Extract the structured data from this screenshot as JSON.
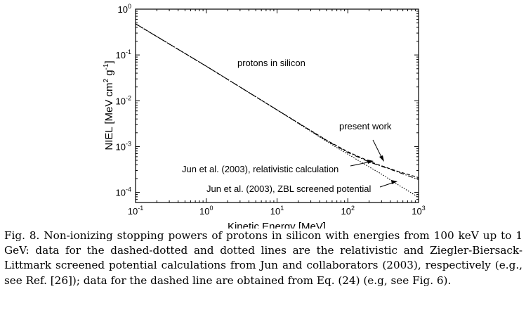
{
  "chart_data": {
    "type": "line",
    "title": "",
    "xlabel": "Kinetic Energy [MeV]",
    "ylabel": "NIEL [MeV cm",
    "ylabel_sup1": "2",
    "ylabel_mid": " g",
    "ylabel_sup2": "-1",
    "ylabel_end": "]",
    "x_scale": "log",
    "y_scale": "log",
    "xlim": [
      0.1,
      1000
    ],
    "ylim": [
      6e-05,
      1
    ],
    "x_ticks": [
      {
        "value": 0.1,
        "base": "10",
        "exp": "-1"
      },
      {
        "value": 1,
        "base": "10",
        "exp": "0"
      },
      {
        "value": 10,
        "base": "10",
        "exp": "1"
      },
      {
        "value": 100,
        "base": "10",
        "exp": "2"
      },
      {
        "value": 1000,
        "base": "10",
        "exp": "3"
      }
    ],
    "y_ticks": [
      {
        "value": 0.0001,
        "base": "10",
        "exp": "-4"
      },
      {
        "value": 0.001,
        "base": "10",
        "exp": "-3"
      },
      {
        "value": 0.01,
        "base": "10",
        "exp": "-2"
      },
      {
        "value": 0.1,
        "base": "10",
        "exp": "-1"
      },
      {
        "value": 1,
        "base": "10",
        "exp": "0"
      }
    ],
    "grid": false,
    "legend": "none",
    "series": [
      {
        "style": "dashed",
        "x": [
          0.1,
          1,
          10,
          50,
          100,
          200,
          300,
          500,
          1000
        ],
        "y": [
          0.48,
          0.0567,
          0.0063,
          0.00138,
          0.00077,
          0.00048,
          0.00038,
          0.00029,
          0.00021
        ]
      },
      {
        "style": "dash-dot",
        "x": [
          0.1,
          1,
          10,
          50,
          100,
          200,
          300,
          500,
          1000
        ],
        "y": [
          0.48,
          0.0567,
          0.0063,
          0.00135,
          0.00074,
          0.00046,
          0.00037,
          0.00028,
          0.00019
        ]
      },
      {
        "style": "dotted",
        "x": [
          0.1,
          1,
          10,
          50,
          100,
          200,
          300,
          500,
          1000
        ],
        "y": [
          0.48,
          0.0567,
          0.0063,
          0.0013,
          0.00068,
          0.00036,
          0.00025,
          0.00015,
          7.8e-05
        ]
      }
    ],
    "annotations": [
      {
        "text": "protons in silicon"
      },
      {
        "text": "present work"
      },
      {
        "text": "Jun et al. (2003), relativistic calculation"
      },
      {
        "text": "Jun et al. (2003), ZBL screened potential"
      }
    ]
  },
  "caption": {
    "label": "Fig. 8.",
    "text": "Non-ionizing stopping powers of protons in silicon with energies from 100 keV up to 1 GeV: data for the dashed-dotted and dotted lines are the relativistic and Ziegler-Biersack-Littmark screened potential calculations from Jun and collaborators (2003), respectively (e.g., see Ref. [26]); data for the dashed line are obtained from Eq. (24) (e.g, see Fig. 6)."
  }
}
